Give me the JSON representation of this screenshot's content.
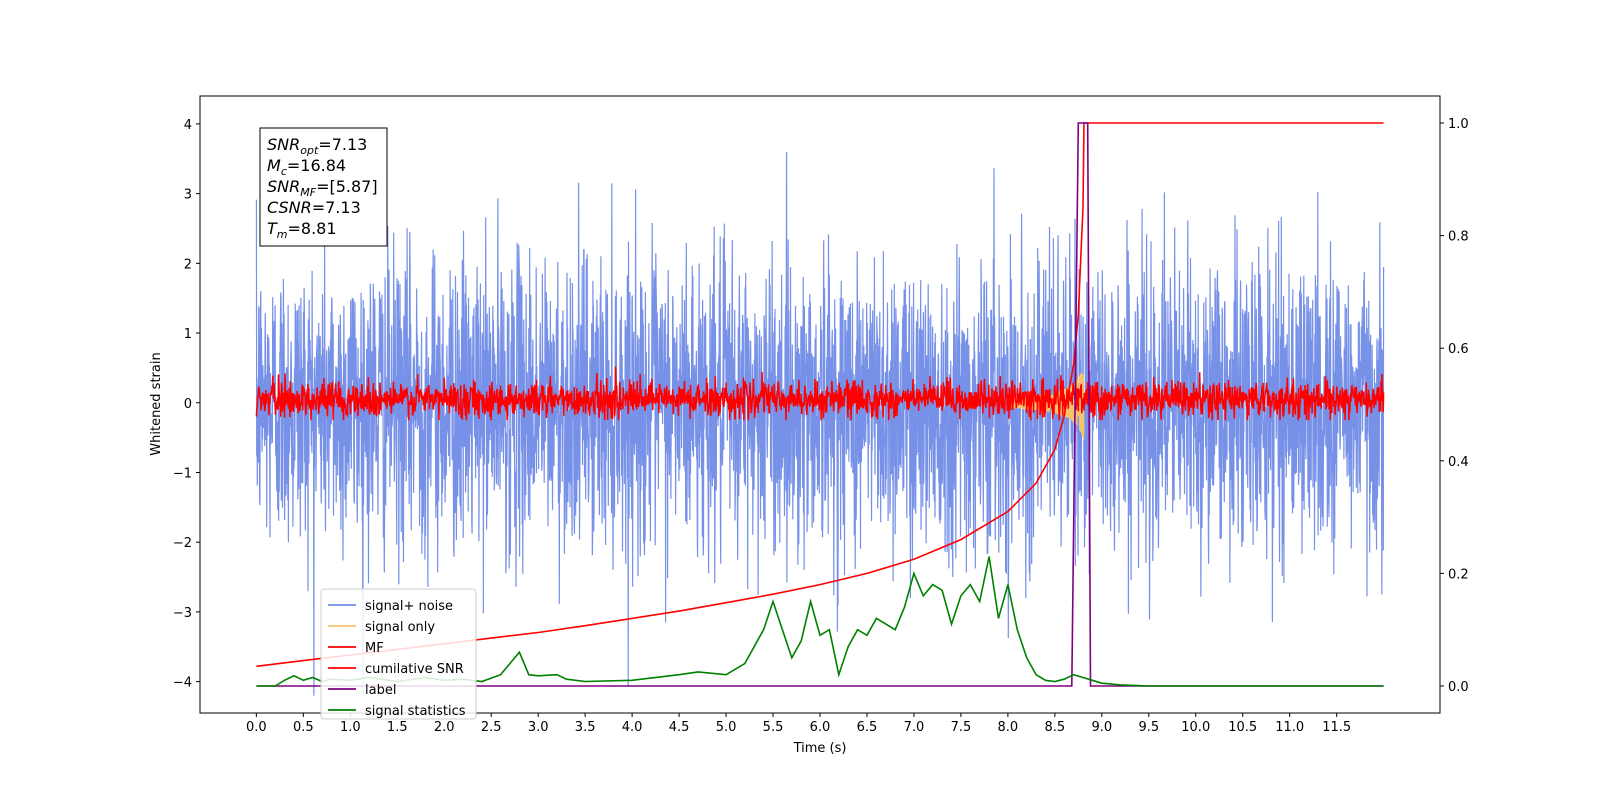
{
  "chart_data": {
    "type": "line",
    "xlabel": "Time (s)",
    "ylabel": "Whitened strain",
    "xlim": [
      -0.6,
      12.6
    ],
    "ylim": [
      -4.45,
      4.4
    ],
    "y2lim": [
      -0.048,
      1.048
    ],
    "grid": false,
    "legend_position": "bottom-left",
    "x_ticks": [
      0.0,
      0.5,
      1.0,
      1.5,
      2.0,
      2.5,
      3.0,
      3.5,
      4.0,
      4.5,
      5.0,
      5.5,
      6.0,
      6.5,
      7.0,
      7.5,
      8.0,
      8.5,
      9.0,
      9.5,
      10.0,
      10.5,
      11.0,
      11.5
    ],
    "x_tick_labels": [
      "0.0",
      "0.5",
      "1.0",
      "1.5",
      "2.0",
      "2.5",
      "3.0",
      "3.5",
      "4.0",
      "4.5",
      "5.0",
      "5.5",
      "6.0",
      "6.5",
      "7.0",
      "7.5",
      "8.0",
      "8.5",
      "9.0",
      "9.5",
      "10.0",
      "10.5",
      "11.0",
      "11.5"
    ],
    "y_ticks": [
      -4,
      -3,
      -2,
      -1,
      0,
      1,
      2,
      3,
      4
    ],
    "y_tick_labels": [
      "−4",
      "−3",
      "−2",
      "−1",
      "0",
      "1",
      "2",
      "3",
      "4"
    ],
    "y2_ticks": [
      0.0,
      0.2,
      0.4,
      0.6,
      0.8,
      1.0
    ],
    "y2_tick_labels": [
      "0.0",
      "0.2",
      "0.4",
      "0.6",
      "0.8",
      "1.0"
    ],
    "info_box": [
      {
        "base": "SNR",
        "sub": "opt",
        "rest": "=7.13"
      },
      {
        "base": "M",
        "sub": "c",
        "rest": "=16.84"
      },
      {
        "base": "SNR",
        "sub": "MF",
        "rest": "=[5.87]"
      },
      {
        "base": "CSNR",
        "sub": "",
        "rest": "=7.13"
      },
      {
        "base": "T",
        "sub": "m",
        "rest": "=8.81"
      }
    ],
    "series": [
      {
        "name": "signal+ noise",
        "axis": "left",
        "color": "#6f8be6",
        "noise": {
          "t_start": 0.0,
          "t_end": 12.0,
          "mean": 0.0,
          "std": 1.05,
          "max": 4.0,
          "min": -4.2
        }
      },
      {
        "name": "signal only",
        "axis": "left",
        "color": "#f5c56e",
        "chirp": {
          "t_start": 8.0,
          "t_merge": 8.81,
          "peak_amplitude": 0.55
        }
      },
      {
        "name": "MF",
        "axis": "left",
        "color": "#ff0000",
        "noise": {
          "t_start": 0.0,
          "t_end": 12.0,
          "mean": 0.05,
          "std": 0.13,
          "max": 0.55,
          "min": -0.25
        }
      },
      {
        "name": "cumilative SNR",
        "axis": "right",
        "color": "#ff0000",
        "x": [
          0.0,
          0.5,
          1.0,
          1.5,
          2.0,
          2.5,
          3.0,
          3.5,
          4.0,
          4.5,
          5.0,
          5.5,
          6.0,
          6.5,
          7.0,
          7.5,
          8.0,
          8.3,
          8.5,
          8.6,
          8.7,
          8.75,
          8.8,
          8.81,
          9.0,
          10.0,
          11.0,
          12.0
        ],
        "y": [
          0.035,
          0.045,
          0.055,
          0.065,
          0.075,
          0.085,
          0.095,
          0.107,
          0.12,
          0.133,
          0.148,
          0.163,
          0.18,
          0.2,
          0.225,
          0.26,
          0.31,
          0.36,
          0.42,
          0.48,
          0.57,
          0.66,
          0.85,
          1.0,
          1.0,
          1.0,
          1.0,
          1.0
        ]
      },
      {
        "name": "label",
        "axis": "right",
        "color": "#800080",
        "x": [
          0.0,
          8.68,
          8.75,
          8.85,
          8.88,
          12.0
        ],
        "y": [
          0.0,
          0.0,
          1.0,
          1.0,
          0.0,
          0.0
        ]
      },
      {
        "name": "signal statistics",
        "axis": "right",
        "color": "#008000",
        "x": [
          0.0,
          0.2,
          0.3,
          0.4,
          0.5,
          0.6,
          0.7,
          0.8,
          1.0,
          1.2,
          1.5,
          1.8,
          2.0,
          2.2,
          2.4,
          2.6,
          2.8,
          2.9,
          3.0,
          3.2,
          3.3,
          3.5,
          4.0,
          4.5,
          4.7,
          5.0,
          5.2,
          5.4,
          5.5,
          5.6,
          5.7,
          5.8,
          5.9,
          6.0,
          6.1,
          6.2,
          6.3,
          6.4,
          6.5,
          6.6,
          6.8,
          6.9,
          7.0,
          7.1,
          7.2,
          7.3,
          7.4,
          7.5,
          7.6,
          7.7,
          7.8,
          7.9,
          8.0,
          8.1,
          8.2,
          8.3,
          8.4,
          8.5,
          8.6,
          8.7,
          8.8,
          8.9,
          9.0,
          9.2,
          9.5,
          10.0,
          11.0,
          12.0
        ],
        "y": [
          0.0,
          0.0,
          0.01,
          0.018,
          0.01,
          0.015,
          0.008,
          0.012,
          0.01,
          0.015,
          0.008,
          0.015,
          0.01,
          0.012,
          0.008,
          0.02,
          0.06,
          0.02,
          0.018,
          0.02,
          0.012,
          0.008,
          0.01,
          0.02,
          0.025,
          0.02,
          0.04,
          0.1,
          0.15,
          0.1,
          0.05,
          0.08,
          0.15,
          0.09,
          0.1,
          0.02,
          0.07,
          0.1,
          0.09,
          0.12,
          0.1,
          0.14,
          0.2,
          0.16,
          0.18,
          0.17,
          0.11,
          0.16,
          0.18,
          0.15,
          0.23,
          0.12,
          0.18,
          0.1,
          0.05,
          0.02,
          0.01,
          0.008,
          0.012,
          0.02,
          0.015,
          0.01,
          0.005,
          0.002,
          0.0,
          0.0,
          0.0,
          0.0
        ]
      }
    ]
  }
}
